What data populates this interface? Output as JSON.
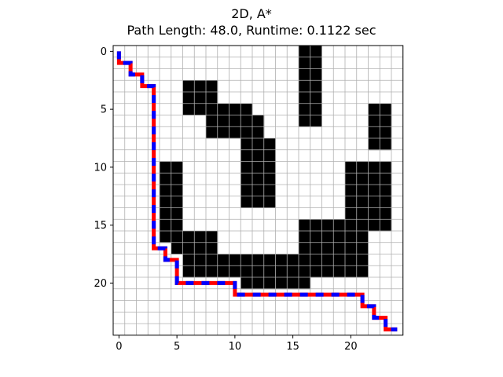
{
  "chart_data": {
    "type": "heatmap",
    "title": "2D, A*",
    "subtitle": "Path Length: 48.0, Runtime: 0.1122 sec",
    "grid_cols": 24,
    "grid_rows": 25,
    "grid": true,
    "xlim": [
      -0.5,
      24.5
    ],
    "ylim": [
      24.5,
      -0.5
    ],
    "x_ticks": [
      0,
      5,
      10,
      15,
      20
    ],
    "y_ticks": [
      0,
      5,
      10,
      15,
      20
    ],
    "cell_colors": {
      "free": "#ffffff",
      "obstacle": "#000000",
      "grid_line": "#b0b0b0"
    },
    "obstacles": [
      [
        16,
        0
      ],
      [
        17,
        0
      ],
      [
        16,
        1
      ],
      [
        17,
        1
      ],
      [
        16,
        2
      ],
      [
        17,
        2
      ],
      [
        16,
        3
      ],
      [
        17,
        3
      ],
      [
        16,
        4
      ],
      [
        17,
        4
      ],
      [
        16,
        5
      ],
      [
        17,
        5
      ],
      [
        16,
        6
      ],
      [
        17,
        6
      ],
      [
        6,
        3
      ],
      [
        7,
        3
      ],
      [
        8,
        3
      ],
      [
        6,
        4
      ],
      [
        7,
        4
      ],
      [
        8,
        4
      ],
      [
        6,
        5
      ],
      [
        7,
        5
      ],
      [
        8,
        5
      ],
      [
        8,
        5
      ],
      [
        9,
        5
      ],
      [
        10,
        5
      ],
      [
        11,
        5
      ],
      [
        8,
        6
      ],
      [
        9,
        6
      ],
      [
        10,
        6
      ],
      [
        11,
        6
      ],
      [
        12,
        6
      ],
      [
        8,
        7
      ],
      [
        9,
        7
      ],
      [
        10,
        7
      ],
      [
        11,
        7
      ],
      [
        12,
        7
      ],
      [
        11,
        8
      ],
      [
        12,
        8
      ],
      [
        13,
        8
      ],
      [
        11,
        9
      ],
      [
        12,
        9
      ],
      [
        13,
        9
      ],
      [
        11,
        10
      ],
      [
        12,
        10
      ],
      [
        13,
        10
      ],
      [
        11,
        11
      ],
      [
        12,
        11
      ],
      [
        13,
        11
      ],
      [
        11,
        12
      ],
      [
        12,
        12
      ],
      [
        13,
        12
      ],
      [
        11,
        13
      ],
      [
        12,
        13
      ],
      [
        13,
        13
      ],
      [
        22,
        5
      ],
      [
        23,
        5
      ],
      [
        22,
        6
      ],
      [
        23,
        6
      ],
      [
        22,
        7
      ],
      [
        23,
        7
      ],
      [
        22,
        8
      ],
      [
        23,
        8
      ],
      [
        20,
        10
      ],
      [
        21,
        10
      ],
      [
        22,
        10
      ],
      [
        23,
        10
      ],
      [
        20,
        11
      ],
      [
        21,
        11
      ],
      [
        22,
        11
      ],
      [
        23,
        11
      ],
      [
        20,
        12
      ],
      [
        21,
        12
      ],
      [
        22,
        12
      ],
      [
        23,
        12
      ],
      [
        20,
        13
      ],
      [
        21,
        13
      ],
      [
        22,
        13
      ],
      [
        23,
        13
      ],
      [
        20,
        14
      ],
      [
        21,
        14
      ],
      [
        22,
        14
      ],
      [
        23,
        14
      ],
      [
        20,
        15
      ],
      [
        21,
        15
      ],
      [
        22,
        15
      ],
      [
        23,
        15
      ],
      [
        16,
        15
      ],
      [
        17,
        15
      ],
      [
        18,
        15
      ],
      [
        19,
        15
      ],
      [
        16,
        16
      ],
      [
        17,
        16
      ],
      [
        18,
        16
      ],
      [
        19,
        16
      ],
      [
        20,
        16
      ],
      [
        21,
        16
      ],
      [
        16,
        17
      ],
      [
        17,
        17
      ],
      [
        18,
        17
      ],
      [
        19,
        17
      ],
      [
        20,
        17
      ],
      [
        21,
        17
      ],
      [
        16,
        18
      ],
      [
        17,
        18
      ],
      [
        18,
        18
      ],
      [
        19,
        18
      ],
      [
        20,
        18
      ],
      [
        21,
        18
      ],
      [
        16,
        19
      ],
      [
        17,
        19
      ],
      [
        18,
        19
      ],
      [
        19,
        19
      ],
      [
        20,
        19
      ],
      [
        21,
        19
      ],
      [
        4,
        10
      ],
      [
        5,
        10
      ],
      [
        4,
        11
      ],
      [
        5,
        11
      ],
      [
        4,
        12
      ],
      [
        5,
        12
      ],
      [
        4,
        13
      ],
      [
        5,
        13
      ],
      [
        4,
        14
      ],
      [
        5,
        14
      ],
      [
        4,
        15
      ],
      [
        5,
        15
      ],
      [
        4,
        16
      ],
      [
        5,
        16
      ],
      [
        6,
        16
      ],
      [
        7,
        16
      ],
      [
        8,
        16
      ],
      [
        5,
        17
      ],
      [
        6,
        17
      ],
      [
        7,
        17
      ],
      [
        8,
        17
      ],
      [
        6,
        18
      ],
      [
        7,
        18
      ],
      [
        8,
        18
      ],
      [
        6,
        19
      ],
      [
        7,
        19
      ],
      [
        8,
        19
      ],
      [
        9,
        18
      ],
      [
        10,
        18
      ],
      [
        11,
        18
      ],
      [
        12,
        18
      ],
      [
        13,
        18
      ],
      [
        14,
        18
      ],
      [
        15,
        18
      ],
      [
        9,
        19
      ],
      [
        10,
        19
      ],
      [
        11,
        19
      ],
      [
        12,
        19
      ],
      [
        13,
        19
      ],
      [
        14,
        19
      ],
      [
        15,
        19
      ],
      [
        11,
        20
      ],
      [
        12,
        20
      ],
      [
        13,
        20
      ],
      [
        14,
        20
      ],
      [
        15,
        20
      ],
      [
        16,
        20
      ]
    ],
    "path_colors": [
      "#ff0000",
      "#0000ff"
    ],
    "path": [
      [
        0,
        0
      ],
      [
        0,
        1
      ],
      [
        1,
        1
      ],
      [
        1,
        2
      ],
      [
        2,
        2
      ],
      [
        2,
        3
      ],
      [
        3,
        3
      ],
      [
        3,
        17
      ],
      [
        4,
        17
      ],
      [
        4,
        18
      ],
      [
        5,
        18
      ],
      [
        5,
        20
      ],
      [
        10,
        20
      ],
      [
        10,
        21
      ],
      [
        21,
        21
      ],
      [
        21,
        22
      ],
      [
        22,
        22
      ],
      [
        22,
        23
      ],
      [
        23,
        23
      ],
      [
        23,
        24
      ],
      [
        24,
        24
      ]
    ]
  }
}
